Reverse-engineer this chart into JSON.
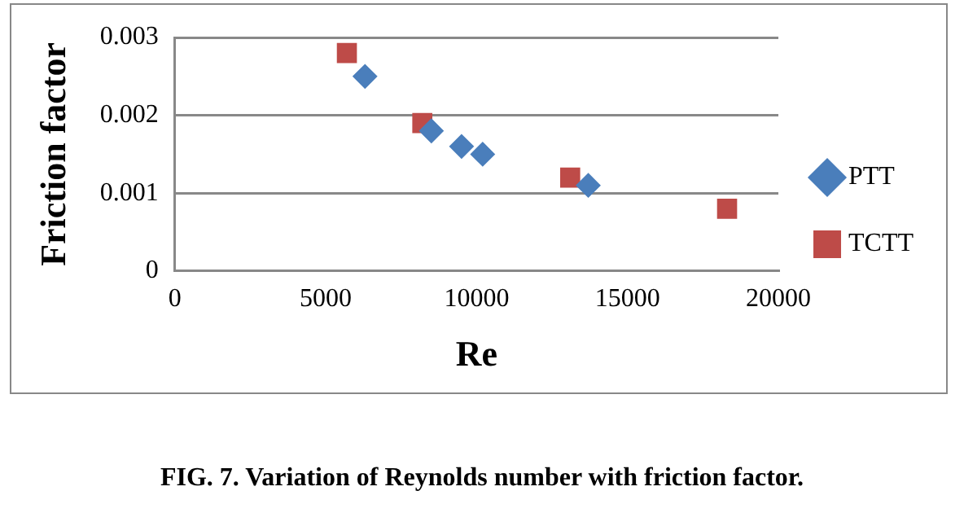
{
  "chart_data": {
    "type": "scatter",
    "xlabel": "Re",
    "ylabel": "Friction factor",
    "xlim": [
      0,
      20000
    ],
    "xticks": [
      0,
      5000,
      10000,
      15000,
      20000
    ],
    "ylim": [
      0,
      0.003
    ],
    "yticks": [
      0,
      0.001,
      0.002,
      0.003
    ],
    "grid": "y",
    "legend": "right",
    "series": [
      {
        "name": "PTT",
        "color": "#4a7ebb",
        "marker": "diamond",
        "x": [
          6300,
          8500,
          9500,
          10200,
          13700
        ],
        "values": [
          0.0025,
          0.0018,
          0.0016,
          0.0015,
          0.0011
        ]
      },
      {
        "name": "TCTT",
        "color": "#be4b48",
        "marker": "square",
        "x": [
          5700,
          8200,
          13100,
          18300
        ],
        "values": [
          0.0028,
          0.0019,
          0.0012,
          0.0008
        ]
      }
    ],
    "annotations": [
      "FIG. 7. Variation of Reynolds number with friction factor."
    ]
  }
}
